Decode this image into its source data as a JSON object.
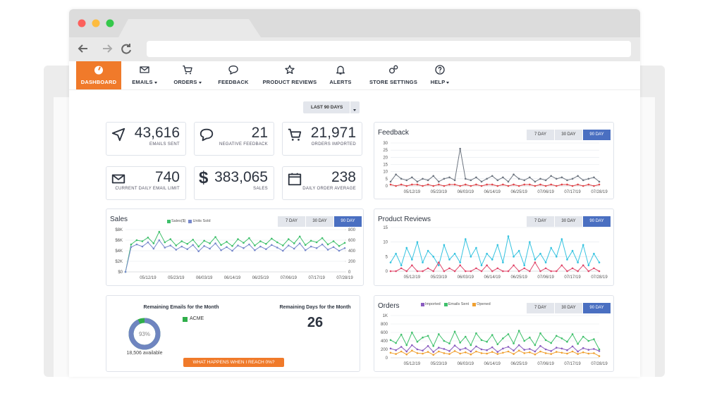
{
  "nav": [
    "DASHBOARD",
    "EMAILS",
    "ORDERS",
    "FEEDBACK",
    "PRODUCT REVIEWS",
    "ALERTS",
    "STORE SETTINGS",
    "HELP"
  ],
  "period_button": "LAST 90 DAYS",
  "stats": [
    {
      "value": "43,616",
      "label": "EMAILS SENT"
    },
    {
      "value": "21",
      "label": "NEGATIVE FEEDBACK"
    },
    {
      "value": "21,971",
      "label": "ORDERS IMPORTED"
    },
    {
      "value": "740",
      "label": "CURRENT DAILY EMAIL LIMIT"
    },
    {
      "value": "383,065",
      "label": "SALES",
      "icon": "$"
    },
    {
      "value": "238",
      "label": "DAILY ORDER AVERAGE"
    }
  ],
  "charts": [
    {
      "type": "line",
      "title": "Feedback",
      "ranges": [
        "7 DAY",
        "30 DAY",
        "90 DAY"
      ],
      "active_range": 2,
      "categories": [
        null,
        null,
        null,
        null,
        "05/12/19",
        null,
        null,
        null,
        null,
        "05/23/19",
        null,
        null,
        null,
        null,
        "06/03/19",
        null,
        null,
        null,
        null,
        "06/14/19",
        null,
        null,
        null,
        null,
        "06/25/19",
        null,
        null,
        null,
        null,
        "07/06/19",
        null,
        null,
        null,
        null,
        "07/17/19",
        null,
        null,
        null,
        null,
        "07/28/19"
      ],
      "ylim": [
        0,
        30
      ],
      "yticks": [
        0,
        5,
        10,
        15,
        20,
        25,
        30
      ],
      "grid": true,
      "series": [
        {
          "color": "#6d7580",
          "values": [
            3,
            8,
            5,
            4,
            6,
            3,
            5,
            4,
            7,
            3,
            5,
            6,
            4,
            26,
            5,
            4,
            6,
            3,
            5,
            7,
            4,
            6,
            3,
            8,
            5,
            4,
            6,
            3,
            5,
            4,
            7,
            5,
            6,
            4,
            5,
            7,
            4,
            5,
            6,
            3
          ]
        },
        {
          "color": "#e0474c",
          "values": [
            1,
            0,
            1,
            0,
            1,
            1,
            0,
            1,
            0,
            1,
            0,
            1,
            1,
            0,
            1,
            0,
            1,
            0,
            1,
            1,
            0,
            1,
            0,
            1,
            0,
            1,
            1,
            0,
            1,
            0,
            1,
            0,
            1,
            1,
            0,
            1,
            0,
            1,
            0,
            1
          ]
        }
      ]
    },
    {
      "type": "line",
      "title": "Sales",
      "ranges": [
        "7 DAY",
        "30 DAY",
        "90 DAY"
      ],
      "active_range": 2,
      "categories": [
        null,
        null,
        null,
        null,
        "05/12/19",
        null,
        null,
        null,
        null,
        "05/23/19",
        null,
        null,
        null,
        null,
        "06/03/19",
        null,
        null,
        null,
        null,
        "06/14/19",
        null,
        null,
        null,
        null,
        "06/25/19",
        null,
        null,
        null,
        null,
        "07/06/19",
        null,
        null,
        null,
        null,
        "07/17/19",
        null,
        null,
        null,
        null,
        "07/28/19"
      ],
      "ylim": [
        0,
        8000
      ],
      "yticks": [
        {
          "value": 0,
          "label": "$0"
        },
        {
          "value": 2000,
          "label": "$2K"
        },
        {
          "value": 4000,
          "label": "$4K"
        },
        {
          "value": 6000,
          "label": "$6K"
        },
        {
          "value": 8000,
          "label": "$8K"
        }
      ],
      "y2lim": [
        0,
        800
      ],
      "y2ticks": [
        0,
        200,
        400,
        600,
        800
      ],
      "grid": true,
      "series": [
        {
          "name": "Sales($)",
          "color": "#3fc06b",
          "values": [
            0,
            5200,
            6000,
            5800,
            6500,
            5400,
            7600,
            5600,
            6200,
            5000,
            5800,
            5300,
            6100,
            4800,
            5900,
            5400,
            6600,
            5100,
            5700,
            4900,
            6200,
            5500,
            6400,
            5000,
            5800,
            5300,
            6300,
            5600,
            5000,
            6200,
            5400,
            6700,
            5100,
            5900,
            5600,
            6400,
            5200,
            5800,
            4900,
            5500
          ]
        },
        {
          "name": "Units Sold",
          "color": "#7788cc",
          "axis": "y2",
          "values": [
            0,
            470,
            520,
            480,
            560,
            440,
            600,
            460,
            500,
            420,
            480,
            430,
            510,
            390,
            490,
            440,
            540,
            410,
            470,
            400,
            500,
            450,
            520,
            410,
            480,
            430,
            510,
            460,
            400,
            500,
            440,
            540,
            410,
            480,
            450,
            520,
            420,
            470,
            400,
            450
          ]
        }
      ]
    },
    {
      "type": "line",
      "title": "Product Reviews",
      "ranges": [
        "7 DAY",
        "30 DAY",
        "90 DAY"
      ],
      "active_range": 2,
      "categories": [
        null,
        null,
        null,
        null,
        "05/12/19",
        null,
        null,
        null,
        null,
        "05/23/19",
        null,
        null,
        null,
        null,
        "06/03/19",
        null,
        null,
        null,
        null,
        "06/14/19",
        null,
        null,
        null,
        null,
        "06/25/19",
        null,
        null,
        null,
        null,
        "07/06/19",
        null,
        null,
        null,
        null,
        "07/17/19",
        null,
        null,
        null,
        null,
        "07/28/19"
      ],
      "ylim": [
        0,
        15
      ],
      "yticks": [
        0,
        5,
        10,
        15
      ],
      "grid": true,
      "series": [
        {
          "color": "#35c3e0",
          "values": [
            3,
            6,
            2,
            8,
            4,
            10,
            3,
            7,
            5,
            2,
            9,
            4,
            6,
            3,
            11,
            5,
            8,
            2,
            6,
            4,
            9,
            3,
            12,
            5,
            7,
            2,
            10,
            4,
            6,
            3,
            8,
            5,
            11,
            4,
            7,
            3,
            9,
            2,
            6,
            3
          ]
        },
        {
          "color": "#e0476a",
          "values": [
            0,
            0,
            1,
            0,
            2,
            0,
            0,
            1,
            0,
            3,
            0,
            1,
            0,
            2,
            0,
            0,
            1,
            0,
            2,
            0,
            1,
            0,
            0,
            2,
            0,
            1,
            0,
            3,
            0,
            1,
            0,
            0,
            2,
            0,
            1,
            0,
            2,
            0,
            1,
            0
          ]
        }
      ]
    },
    {
      "type": "line",
      "title": "Orders",
      "ranges": [
        "7 DAY",
        "30 DAY",
        "90 DAY"
      ],
      "active_range": 2,
      "categories": [
        null,
        null,
        null,
        null,
        "05/12/19",
        null,
        null,
        null,
        null,
        "05/23/19",
        null,
        null,
        null,
        null,
        "06/03/19",
        null,
        null,
        null,
        null,
        "06/14/19",
        null,
        null,
        null,
        null,
        "06/25/19",
        null,
        null,
        null,
        null,
        "07/06/19",
        null,
        null,
        null,
        null,
        "07/17/19",
        null,
        null,
        null,
        null,
        "07/28/19"
      ],
      "ylim": [
        0,
        1000
      ],
      "yticks": [
        0,
        200,
        400,
        600,
        800,
        {
          "value": 1000,
          "label": "1K"
        }
      ],
      "grid": true,
      "series": [
        {
          "name": "Imported",
          "color": "#8a5cc0",
          "values": [
            220,
            180,
            260,
            150,
            300,
            200,
            170,
            280,
            140,
            240,
            210,
            160,
            290,
            190,
            230,
            150,
            270,
            200,
            180,
            250,
            140,
            220,
            260,
            170,
            300,
            190,
            210,
            150,
            280,
            200,
            160,
            240,
            220,
            180,
            270,
            150,
            230,
            190,
            210,
            160
          ]
        },
        {
          "name": "Emails Sent",
          "color": "#3fc06b",
          "values": [
            420,
            350,
            550,
            300,
            600,
            380,
            480,
            520,
            280,
            560,
            400,
            340,
            620,
            360,
            500,
            300,
            580,
            420,
            380,
            540,
            320,
            460,
            560,
            340,
            640,
            400,
            480,
            300,
            580,
            420,
            350,
            520,
            460,
            380,
            560,
            330,
            500,
            400,
            440,
            200
          ]
        },
        {
          "name": "Opened",
          "color": "#f0a030",
          "values": [
            120,
            90,
            150,
            80,
            170,
            110,
            100,
            140,
            70,
            150,
            110,
            90,
            160,
            100,
            130,
            80,
            150,
            110,
            100,
            140,
            90,
            120,
            150,
            90,
            170,
            110,
            130,
            80,
            150,
            110,
            90,
            140,
            120,
            100,
            150,
            90,
            130,
            100,
            110,
            40
          ]
        }
      ]
    }
  ],
  "remaining_emails": {
    "type": "pie",
    "title": "Remaining Emails for the Month",
    "values": [
      93
    ],
    "value_labels": [
      "93%"
    ],
    "caption": "18,506 available",
    "legend": "ACME",
    "color": "#6f85c0",
    "rest_color": "#2fae4a"
  },
  "remaining_days": {
    "title": "Remaining Days for the Month",
    "value": "26"
  },
  "reach_button": "WHAT HAPPENS WHEN I REACH 0%?"
}
